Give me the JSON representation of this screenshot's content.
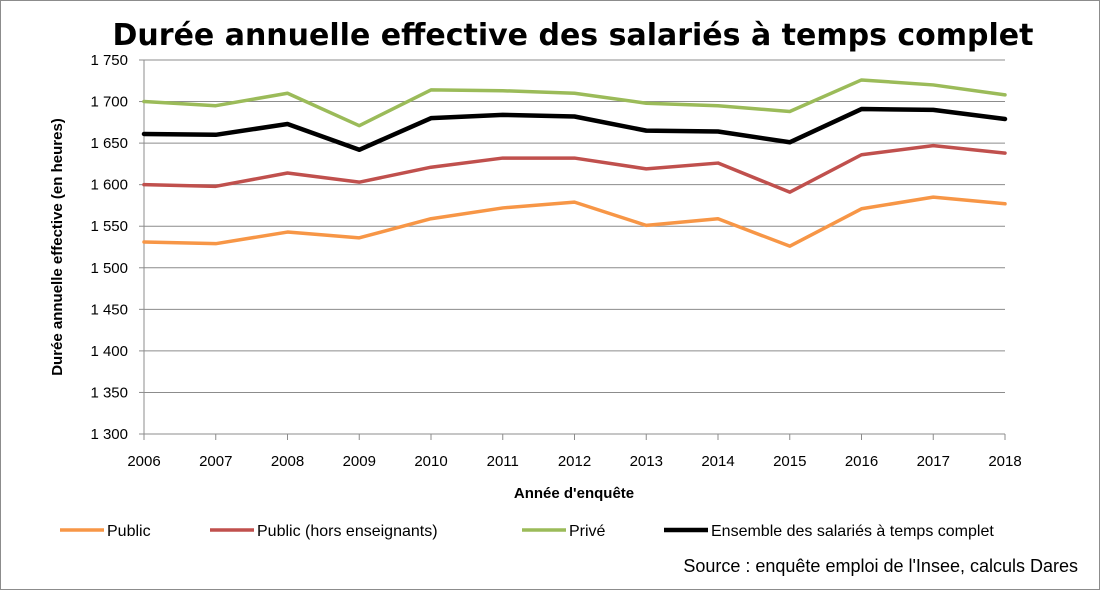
{
  "chart_data": {
    "type": "line",
    "title": "Durée annuelle effective des salariés à temps complet",
    "xlabel": "Année d'enquête",
    "ylabel": "Durée annuelle effective (en heures)",
    "x": [
      2006,
      2007,
      2008,
      2009,
      2010,
      2011,
      2012,
      2013,
      2014,
      2015,
      2016,
      2017,
      2018
    ],
    "ylim": [
      1300,
      1750
    ],
    "yticks": [
      1300,
      1350,
      1400,
      1450,
      1500,
      1550,
      1600,
      1650,
      1700,
      1750
    ],
    "ytick_labels": [
      "1 300",
      "1 350",
      "1 400",
      "1 450",
      "1 500",
      "1 550",
      "1 600",
      "1 650",
      "1 700",
      "1 750"
    ],
    "grid": true,
    "legend_position": "bottom",
    "series": [
      {
        "name": "Public",
        "color": "#f79646",
        "values": [
          1531,
          1529,
          1543,
          1536,
          1559,
          1572,
          1579,
          1551,
          1559,
          1526,
          1571,
          1585,
          1577
        ]
      },
      {
        "name": "Public (hors enseignants)",
        "color": "#c0504d",
        "values": [
          1600,
          1598,
          1614,
          1603,
          1621,
          1632,
          1632,
          1619,
          1626,
          1591,
          1636,
          1647,
          1638
        ]
      },
      {
        "name": "Privé",
        "color": "#9bbb59",
        "values": [
          1700,
          1695,
          1710,
          1671,
          1714,
          1713,
          1710,
          1698,
          1695,
          1688,
          1726,
          1720,
          1708
        ]
      },
      {
        "name": "Ensemble des salariés à temps complet",
        "color": "#000000",
        "values": [
          1661,
          1660,
          1673,
          1642,
          1680,
          1684,
          1682,
          1665,
          1664,
          1651,
          1691,
          1690,
          1679
        ]
      }
    ],
    "source": "Source : enquête emploi de l'Insee, calculs Dares"
  }
}
